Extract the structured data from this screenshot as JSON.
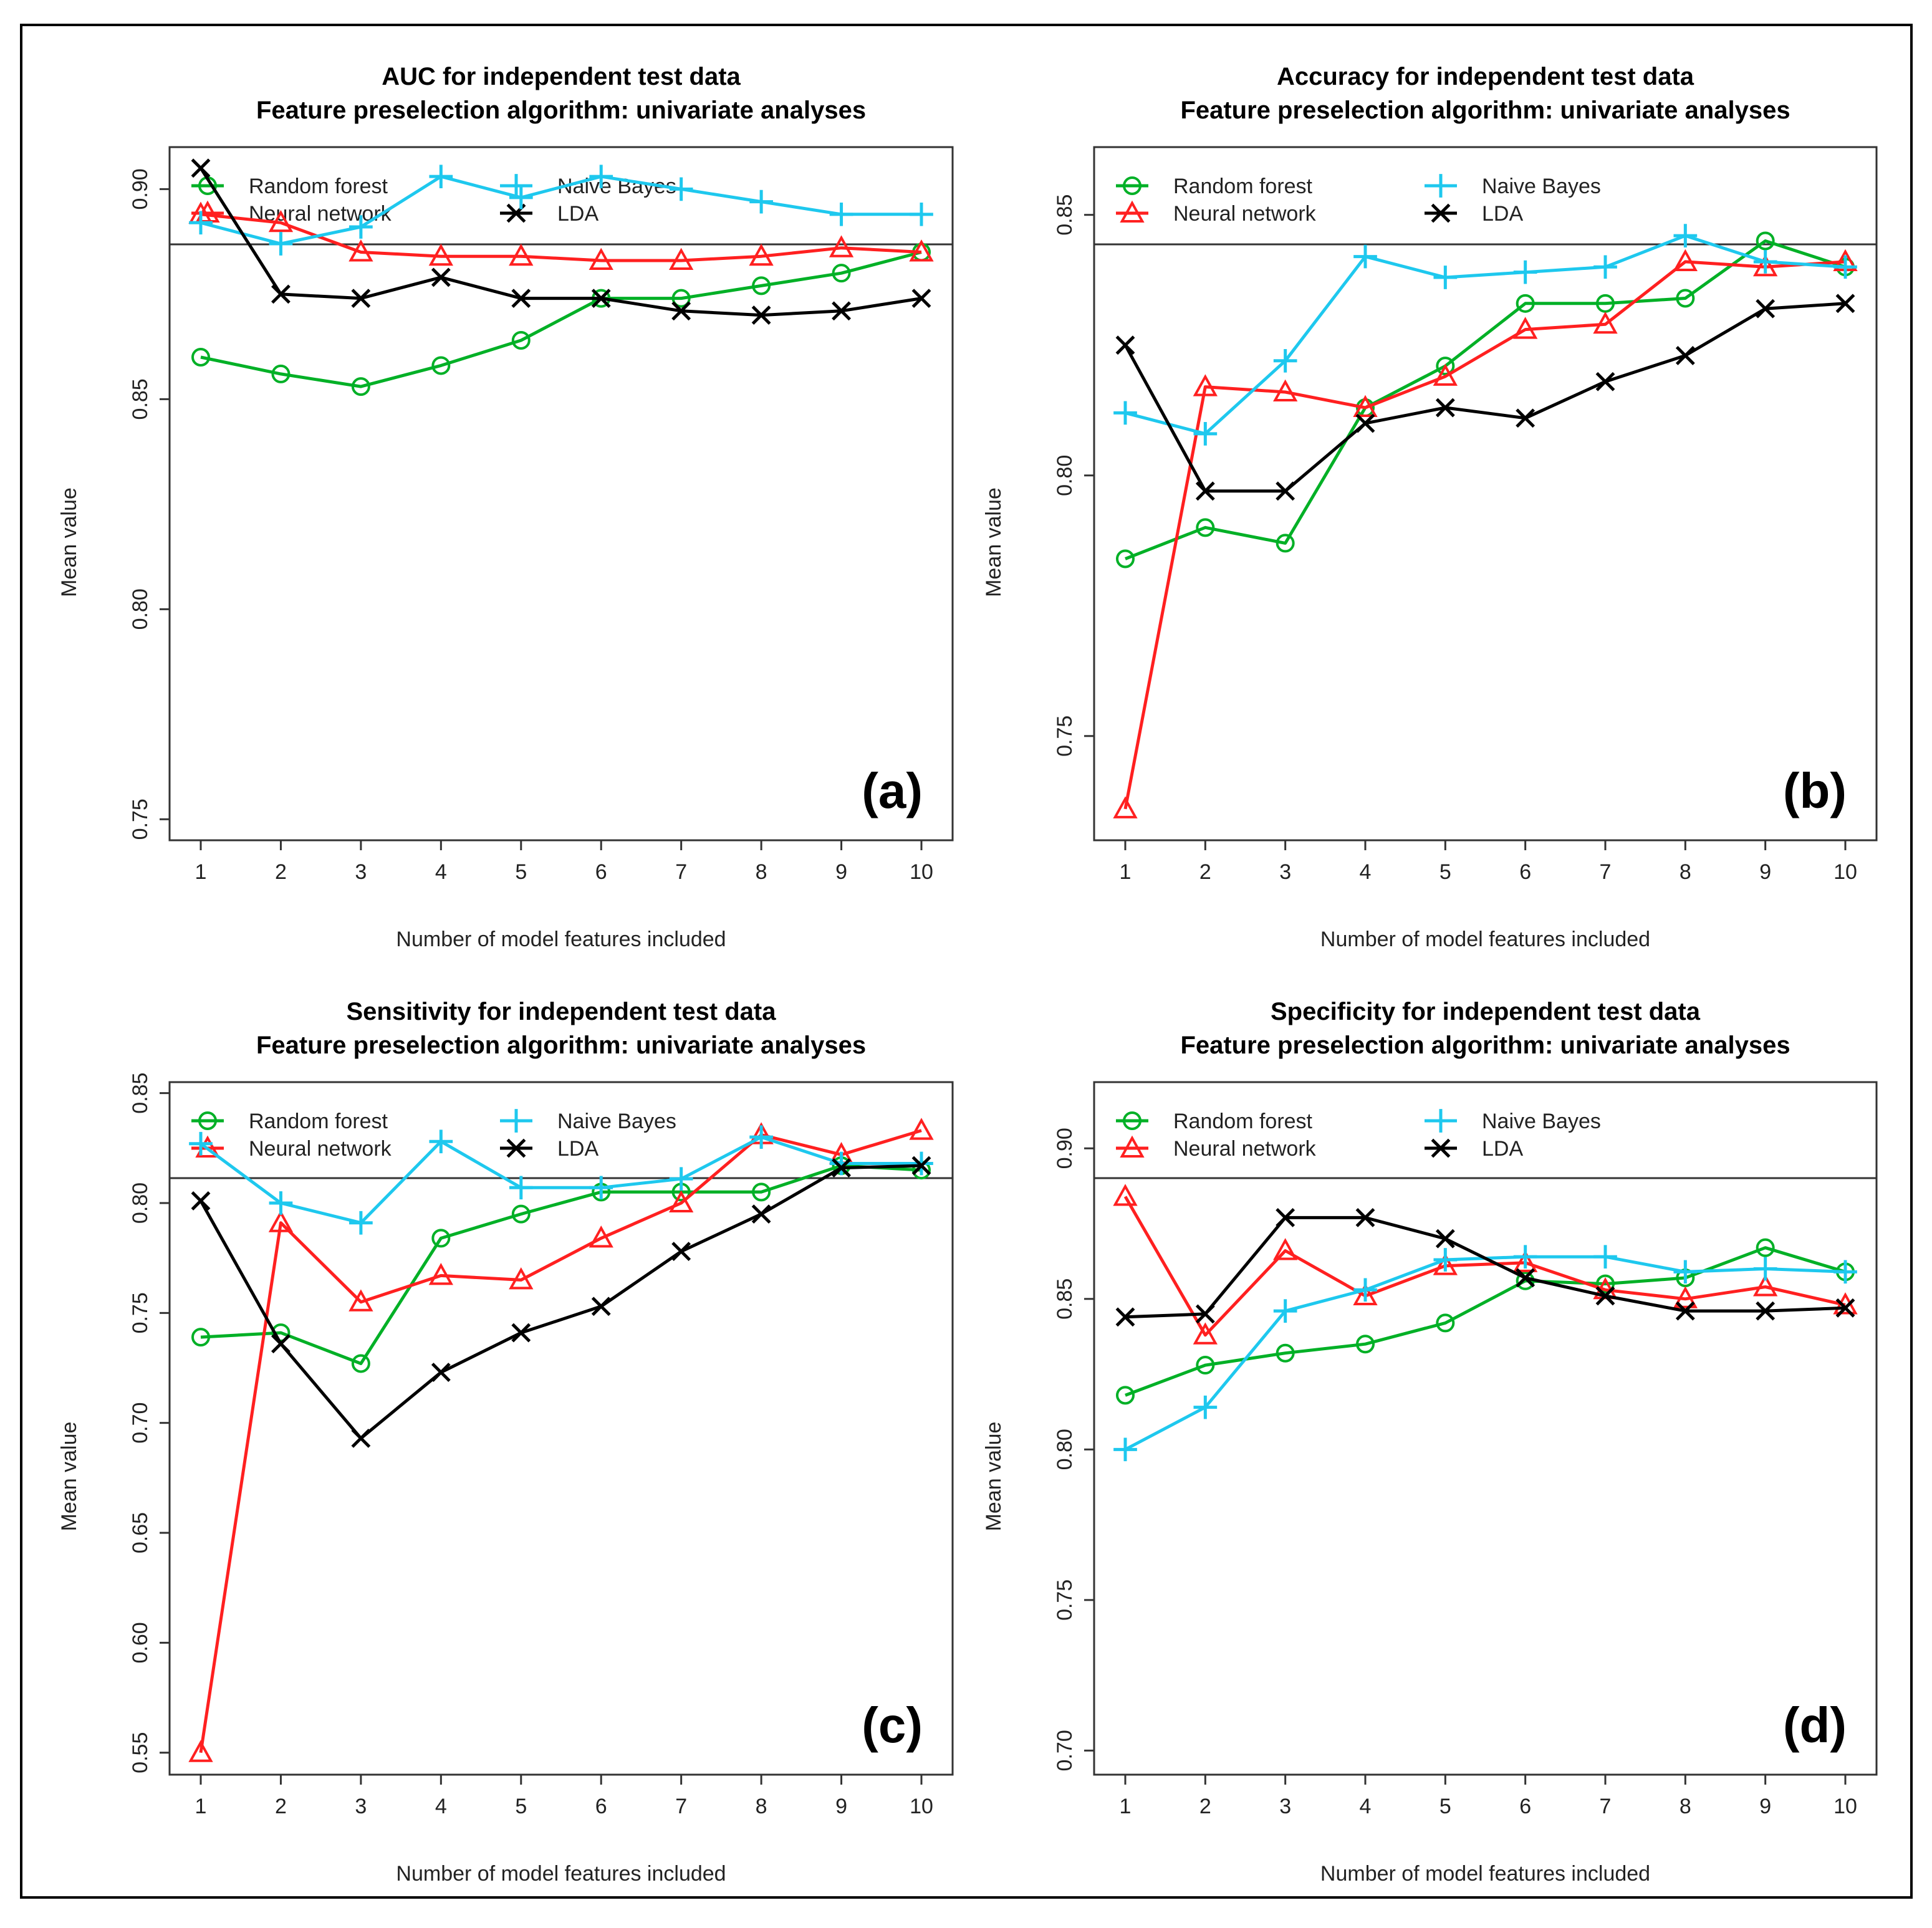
{
  "chart_data": [
    {
      "type": "line",
      "panel_label": "(a)",
      "title": "AUC for independent test data",
      "subtitle": "Feature preselection algorithm: univariate analyses",
      "xlabel": "Number of model features included",
      "ylabel": "Mean value",
      "x": [
        1,
        2,
        3,
        4,
        5,
        6,
        7,
        8,
        9,
        10
      ],
      "ylim": [
        0.745,
        0.91
      ],
      "yticks": [
        0.75,
        0.8,
        0.85,
        0.9
      ],
      "ytick_labels": [
        "0.75",
        "0.80",
        "0.85",
        "0.90"
      ],
      "series": [
        {
          "name": "Random forest",
          "color": "#00b026",
          "marker": "circle",
          "values": [
            0.86,
            0.856,
            0.853,
            0.858,
            0.864,
            0.874,
            0.874,
            0.877,
            0.88,
            0.885
          ]
        },
        {
          "name": "Neural network",
          "color": "#ff2020",
          "marker": "triangle",
          "values": [
            0.894,
            0.892,
            0.885,
            0.884,
            0.884,
            0.883,
            0.883,
            0.884,
            0.886,
            0.885
          ]
        },
        {
          "name": "Naive Bayes",
          "color": "#1ec8ee",
          "marker": "plus",
          "values": [
            0.892,
            0.887,
            0.891,
            0.903,
            0.898,
            0.903,
            0.9,
            0.897,
            0.894,
            0.894
          ]
        },
        {
          "name": "LDA",
          "color": "#000000",
          "marker": "x",
          "values": [
            0.905,
            0.875,
            0.874,
            0.879,
            0.874,
            0.874,
            0.871,
            0.87,
            0.871,
            0.874
          ]
        }
      ]
    },
    {
      "type": "line",
      "panel_label": "(b)",
      "title": "Accuracy for independent test data",
      "subtitle": "Feature preselection algorithm: univariate analyses",
      "xlabel": "Number of model features included",
      "ylabel": "Mean value",
      "x": [
        1,
        2,
        3,
        4,
        5,
        6,
        7,
        8,
        9,
        10
      ],
      "ylim": [
        0.73,
        0.863
      ],
      "yticks": [
        0.75,
        0.8,
        0.85
      ],
      "ytick_labels": [
        "0.75",
        "0.80",
        "0.85"
      ],
      "series": [
        {
          "name": "Random forest",
          "color": "#00b026",
          "marker": "circle",
          "values": [
            0.784,
            0.79,
            0.787,
            0.813,
            0.821,
            0.833,
            0.833,
            0.834,
            0.845,
            0.84
          ]
        },
        {
          "name": "Neural network",
          "color": "#ff2020",
          "marker": "triangle",
          "values": [
            0.736,
            0.817,
            0.816,
            0.813,
            0.819,
            0.828,
            0.829,
            0.841,
            0.84,
            0.841
          ]
        },
        {
          "name": "Naive Bayes",
          "color": "#1ec8ee",
          "marker": "plus",
          "values": [
            0.812,
            0.808,
            0.822,
            0.842,
            0.838,
            0.839,
            0.84,
            0.846,
            0.841,
            0.84
          ]
        },
        {
          "name": "LDA",
          "color": "#000000",
          "marker": "x",
          "values": [
            0.825,
            0.797,
            0.797,
            0.81,
            0.813,
            0.811,
            0.818,
            0.823,
            0.832,
            0.833
          ]
        }
      ]
    },
    {
      "type": "line",
      "panel_label": "(c)",
      "title": "Sensitivity for independent test data",
      "subtitle": "Feature preselection algorithm: univariate analyses",
      "xlabel": "Number of model features included",
      "ylabel": "Mean value",
      "x": [
        1,
        2,
        3,
        4,
        5,
        6,
        7,
        8,
        9,
        10
      ],
      "ylim": [
        0.54,
        0.855
      ],
      "yticks": [
        0.55,
        0.6,
        0.65,
        0.7,
        0.75,
        0.8,
        0.85
      ],
      "ytick_labels": [
        "0.55",
        "0.60",
        "0.65",
        "0.70",
        "0.75",
        "0.80",
        "0.85"
      ],
      "series": [
        {
          "name": "Random forest",
          "color": "#00b026",
          "marker": "circle",
          "values": [
            0.739,
            0.741,
            0.727,
            0.784,
            0.795,
            0.805,
            0.805,
            0.805,
            0.817,
            0.815
          ]
        },
        {
          "name": "Neural network",
          "color": "#ff2020",
          "marker": "triangle",
          "values": [
            0.55,
            0.791,
            0.755,
            0.767,
            0.765,
            0.784,
            0.8,
            0.831,
            0.822,
            0.833
          ]
        },
        {
          "name": "Naive Bayes",
          "color": "#1ec8ee",
          "marker": "plus",
          "values": [
            0.827,
            0.8,
            0.791,
            0.828,
            0.807,
            0.807,
            0.811,
            0.83,
            0.818,
            0.818
          ]
        },
        {
          "name": "LDA",
          "color": "#000000",
          "marker": "x",
          "values": [
            0.801,
            0.736,
            0.693,
            0.723,
            0.741,
            0.753,
            0.778,
            0.795,
            0.816,
            0.817
          ]
        }
      ]
    },
    {
      "type": "line",
      "panel_label": "(d)",
      "title": "Specificity for independent test data",
      "subtitle": "Feature preselection algorithm: univariate analyses",
      "xlabel": "Number of model features included",
      "ylabel": "Mean value",
      "x": [
        1,
        2,
        3,
        4,
        5,
        6,
        7,
        8,
        9,
        10
      ],
      "ylim": [
        0.692,
        0.922
      ],
      "yticks": [
        0.7,
        0.75,
        0.8,
        0.85,
        0.9
      ],
      "ytick_labels": [
        "0.70",
        "0.75",
        "0.80",
        "0.85",
        "0.90"
      ],
      "series": [
        {
          "name": "Random forest",
          "color": "#00b026",
          "marker": "circle",
          "values": [
            0.818,
            0.828,
            0.832,
            0.835,
            0.842,
            0.856,
            0.855,
            0.857,
            0.867,
            0.859
          ]
        },
        {
          "name": "Neural network",
          "color": "#ff2020",
          "marker": "triangle",
          "values": [
            0.884,
            0.838,
            0.866,
            0.851,
            0.861,
            0.862,
            0.853,
            0.85,
            0.854,
            0.848
          ]
        },
        {
          "name": "Naive Bayes",
          "color": "#1ec8ee",
          "marker": "plus",
          "values": [
            0.8,
            0.814,
            0.846,
            0.853,
            0.863,
            0.864,
            0.864,
            0.859,
            0.86,
            0.859
          ]
        },
        {
          "name": "LDA",
          "color": "#000000",
          "marker": "x",
          "values": [
            0.844,
            0.845,
            0.877,
            0.877,
            0.87,
            0.857,
            0.851,
            0.846,
            0.846,
            0.847
          ]
        }
      ]
    }
  ]
}
